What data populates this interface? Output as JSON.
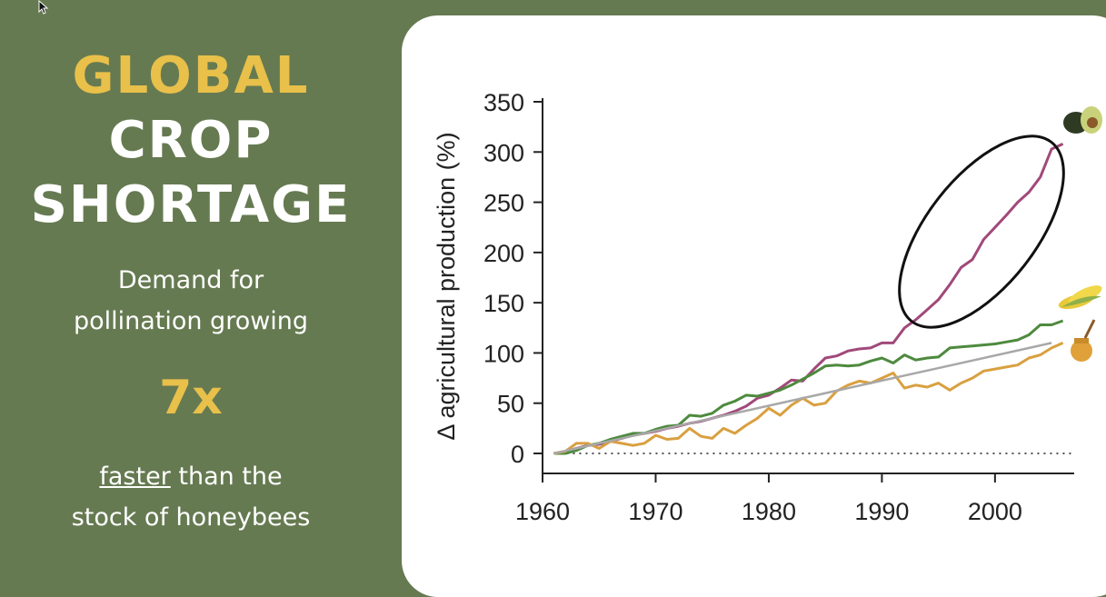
{
  "left_panel": {
    "title_line1": "GLOBAL",
    "title_line2": "CROP",
    "title_line3": "SHORTAGE",
    "subtitle_line1": "Demand for",
    "subtitle_line2": "pollination growing",
    "multiplier": "7x",
    "footer_underlined": "faster",
    "footer_rest": " than the",
    "footer_line2": "stock of honeybees"
  },
  "colors": {
    "background": "#667a51",
    "accent_yellow": "#e8c04a",
    "pollinator_dependent": "#a1497a",
    "non_pollinator": "#4e8a3e",
    "honeybee": "#d9a040",
    "trend": "#a8a8a8"
  },
  "chart_data": {
    "type": "line",
    "ylabel": "Δ agricultural production (%)",
    "xlabel": "",
    "xlim": [
      1960,
      2007
    ],
    "ylim": [
      0,
      350
    ],
    "xticks": [
      1960,
      1970,
      1980,
      1990,
      2000
    ],
    "yticks": [
      0,
      50,
      100,
      150,
      200,
      250,
      300,
      350
    ],
    "zero_line": "dotted",
    "annotation": "ellipse around the 1991–2006 segment of the pollinator-dependent series",
    "icons": [
      "avocado-icon",
      "corn-icon",
      "honey-icon"
    ],
    "series": [
      {
        "color": "#a1497a",
        "x": [
          1961,
          1962,
          1963,
          1964,
          1965,
          1966,
          1967,
          1968,
          1969,
          1970,
          1971,
          1972,
          1973,
          1974,
          1975,
          1976,
          1977,
          1978,
          1979,
          1980,
          1981,
          1982,
          1983,
          1984,
          1985,
          1986,
          1987,
          1988,
          1989,
          1990,
          1991,
          1992,
          1993,
          1994,
          1995,
          1996,
          1997,
          1998,
          1999,
          2000,
          2001,
          2002,
          2003,
          2004,
          2005,
          2006
        ],
        "values": [
          0,
          2,
          5,
          8,
          9,
          12,
          15,
          18,
          20,
          22,
          25,
          27,
          30,
          32,
          35,
          38,
          42,
          47,
          55,
          58,
          65,
          73,
          72,
          84,
          95,
          97,
          102,
          104,
          105,
          110,
          110,
          125,
          133,
          143,
          153,
          168,
          185,
          193,
          213,
          225,
          237,
          250,
          260,
          275,
          303,
          308
        ]
      },
      {
        "color": "#4e8a3e",
        "x": [
          1961,
          1962,
          1963,
          1964,
          1965,
          1966,
          1967,
          1968,
          1969,
          1970,
          1971,
          1972,
          1973,
          1974,
          1975,
          1976,
          1977,
          1978,
          1979,
          1980,
          1981,
          1982,
          1983,
          1984,
          1985,
          1986,
          1987,
          1988,
          1989,
          1990,
          1991,
          1992,
          1993,
          1994,
          1995,
          1996,
          1997,
          1998,
          1999,
          2000,
          2001,
          2002,
          2003,
          2004,
          2005,
          2006
        ],
        "values": [
          0,
          0,
          3,
          8,
          10,
          14,
          17,
          20,
          20,
          24,
          27,
          28,
          38,
          37,
          40,
          48,
          52,
          58,
          57,
          60,
          63,
          68,
          74,
          80,
          87,
          88,
          87,
          88,
          92,
          95,
          90,
          98,
          93,
          95,
          96,
          105,
          106,
          107,
          108,
          109,
          111,
          113,
          118,
          128,
          128,
          132
        ]
      },
      {
        "color": "#d9a040",
        "x": [
          1961,
          1962,
          1963,
          1964,
          1965,
          1966,
          1967,
          1968,
          1969,
          1970,
          1971,
          1972,
          1973,
          1974,
          1975,
          1976,
          1977,
          1978,
          1979,
          1980,
          1981,
          1982,
          1983,
          1984,
          1985,
          1986,
          1987,
          1988,
          1989,
          1990,
          1991,
          1992,
          1993,
          1994,
          1995,
          1996,
          1997,
          1998,
          1999,
          2000,
          2001,
          2002,
          2003,
          2004,
          2005,
          2006
        ],
        "values": [
          0,
          2,
          10,
          10,
          5,
          12,
          10,
          8,
          10,
          18,
          14,
          15,
          25,
          17,
          15,
          25,
          20,
          28,
          35,
          45,
          38,
          48,
          55,
          48,
          50,
          62,
          68,
          72,
          70,
          75,
          80,
          65,
          68,
          66,
          70,
          63,
          70,
          75,
          82,
          84,
          86,
          88,
          95,
          98,
          105,
          110
        ]
      },
      {
        "color": "#a8a8a8",
        "x": [
          1961,
          2005
        ],
        "values": [
          0,
          110
        ]
      }
    ]
  }
}
